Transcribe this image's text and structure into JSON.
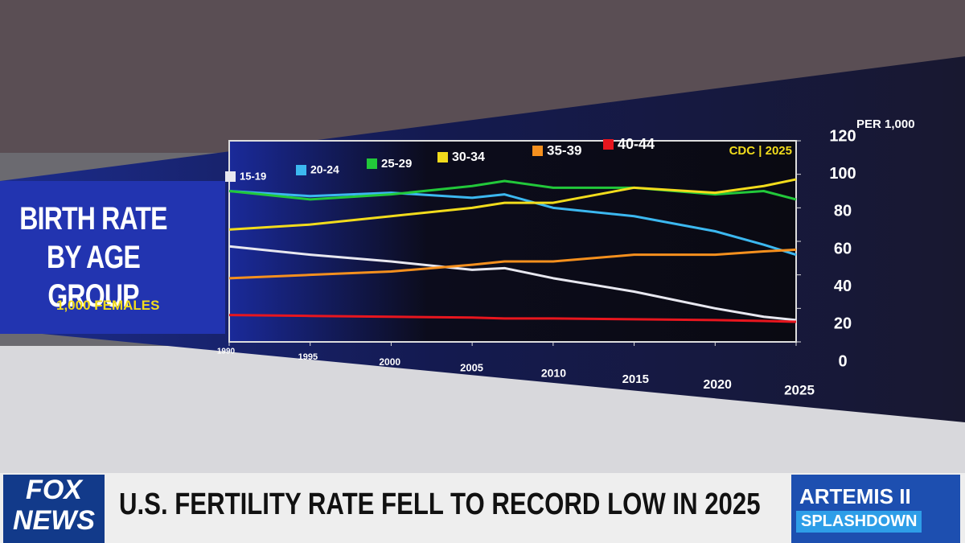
{
  "chart_data": {
    "type": "line",
    "title": "BIRTH RATE BY AGE GROUP",
    "subtitle": "1,000 FEMALES",
    "source": "CDC | 2025",
    "y_label": "PER 1,000",
    "x": [
      1990,
      1995,
      2000,
      2005,
      2007,
      2010,
      2015,
      2020,
      2023,
      2025
    ],
    "series": [
      {
        "name": "15-19",
        "color": "#e8e8f0",
        "values": [
          57,
          52,
          48,
          43,
          44,
          38,
          30,
          20,
          15,
          13
        ]
      },
      {
        "name": "20-24",
        "color": "#3cb8f0",
        "values": [
          90,
          87,
          89,
          86,
          88,
          80,
          75,
          66,
          58,
          52
        ]
      },
      {
        "name": "25-29",
        "color": "#22c83a",
        "values": [
          90,
          85,
          88,
          93,
          96,
          92,
          92,
          88,
          90,
          85
        ]
      },
      {
        "name": "30-34",
        "color": "#f2dc1c",
        "values": [
          67,
          70,
          75,
          80,
          83,
          83,
          92,
          89,
          93,
          97
        ]
      },
      {
        "name": "35-39",
        "color": "#f5901e",
        "values": [
          38,
          40,
          42,
          46,
          48,
          48,
          52,
          52,
          54,
          55
        ]
      },
      {
        "name": "40-44",
        "color": "#e8161e",
        "values": [
          16,
          15.5,
          15,
          14.5,
          14,
          14,
          13.5,
          13,
          12.5,
          12
        ]
      }
    ],
    "xlim": [
      1990,
      2025
    ],
    "xticks": [
      1990,
      1995,
      2000,
      2005,
      2010,
      2015,
      2020,
      2025
    ],
    "ylim": [
      0,
      120
    ],
    "yticks": [
      0,
      20,
      40,
      60,
      80,
      100,
      120
    ],
    "legend": "top"
  },
  "lower_third": {
    "logo_top": "FOX",
    "logo_bottom": "NEWS",
    "headline": "U.S. FERTILITY RATE FELL TO RECORD LOW IN 2025",
    "side_top": "ARTEMIS II",
    "side_bottom": "SPLASHDOWN"
  }
}
